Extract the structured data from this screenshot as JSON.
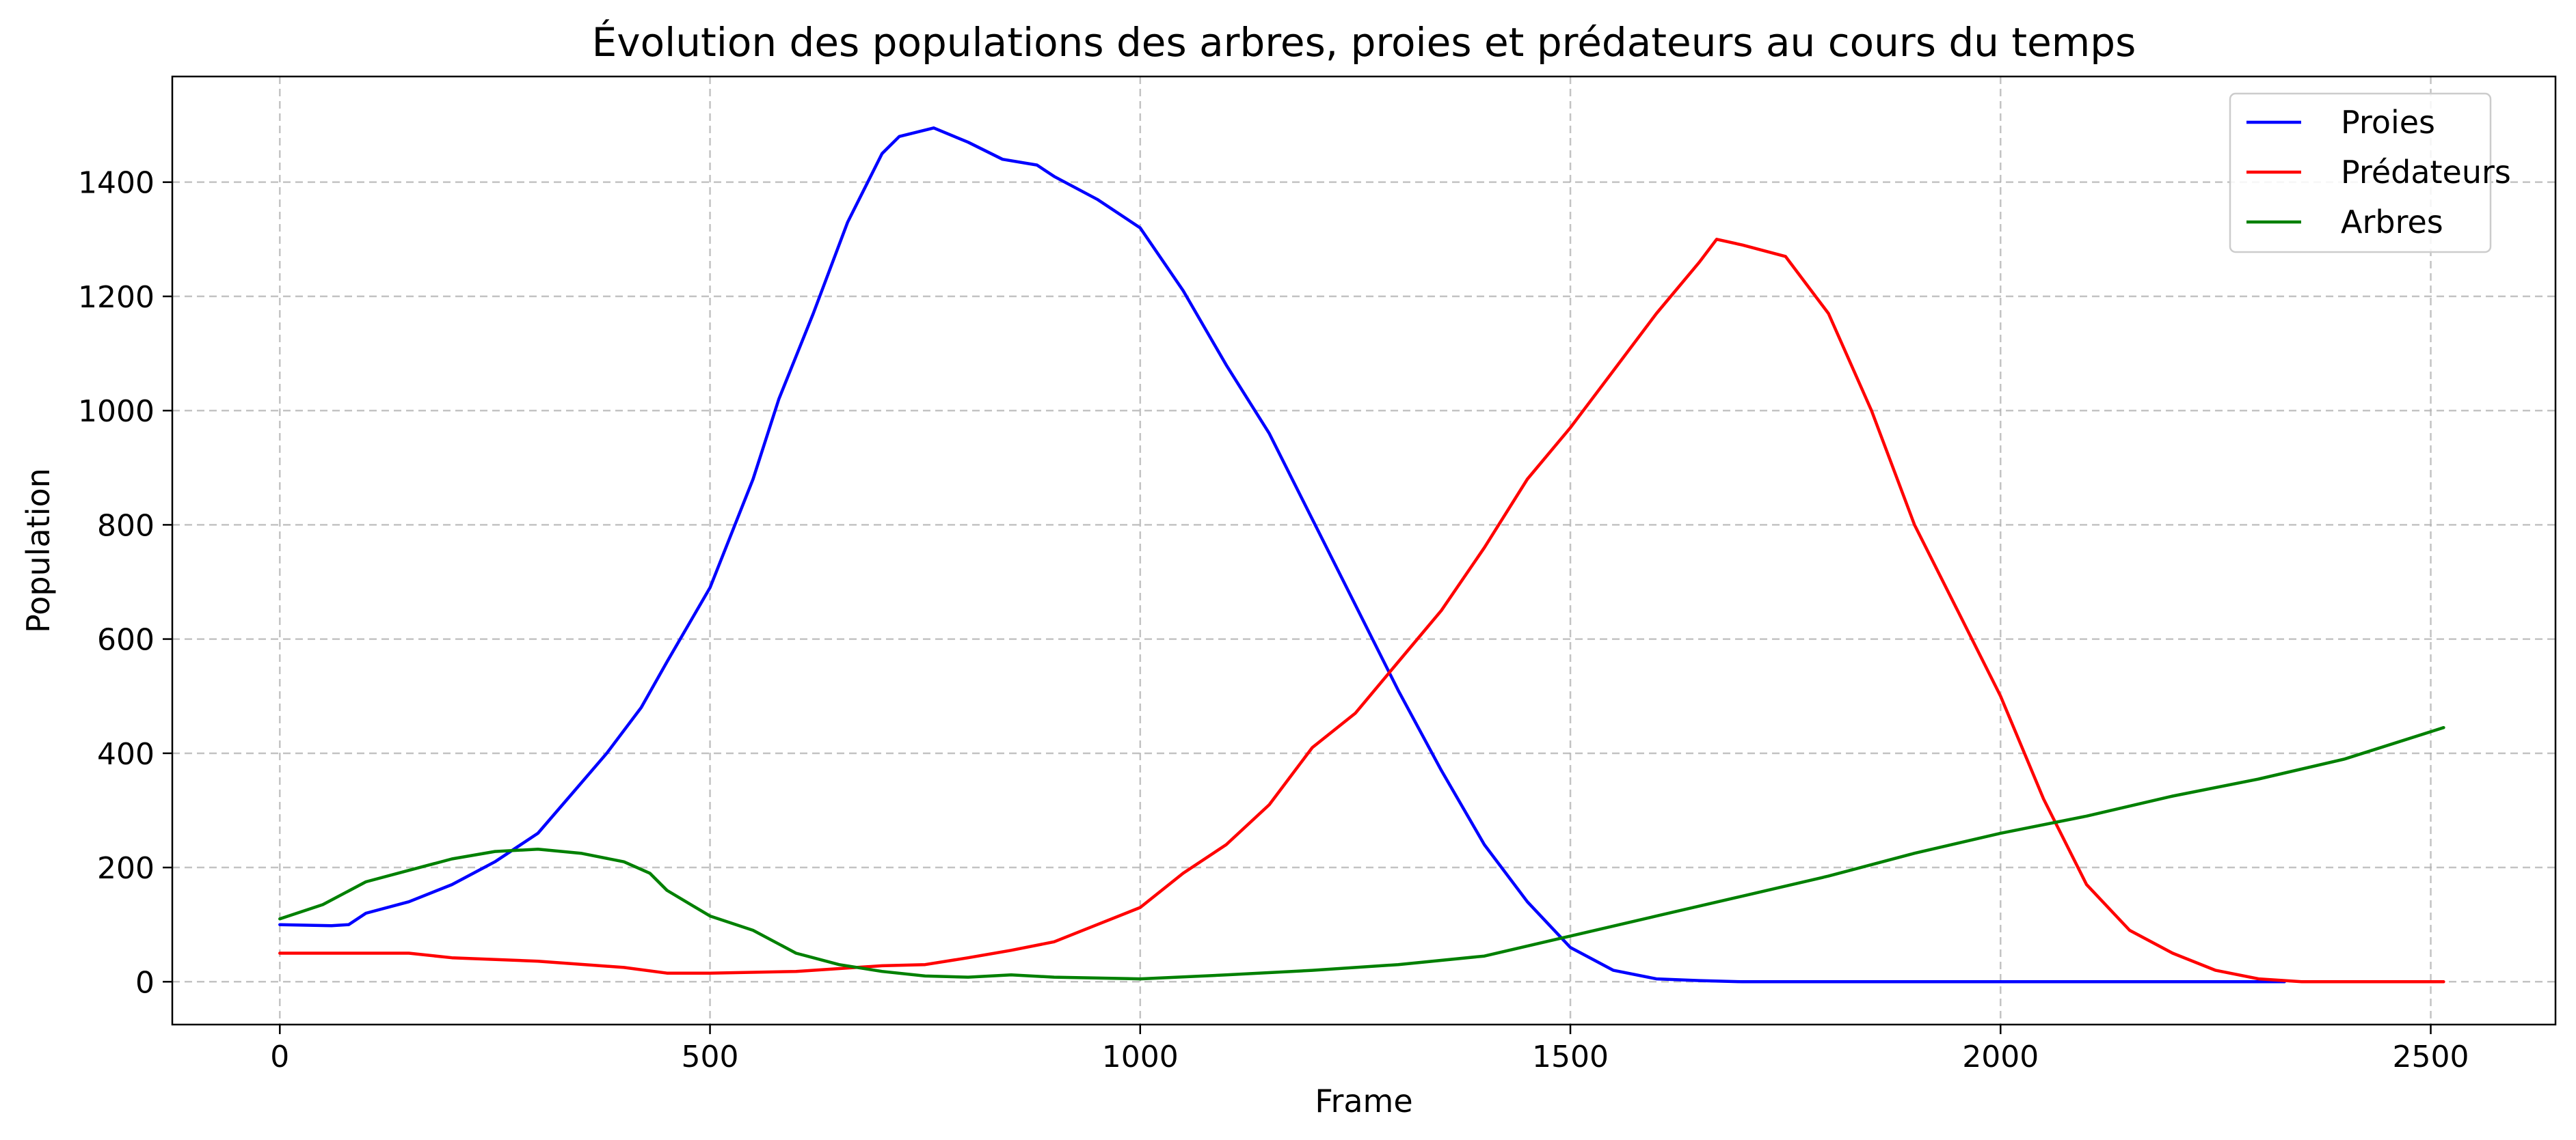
{
  "chart_data": {
    "type": "line",
    "title": "Évolution des populations des arbres, proies et prédateurs au cours du temps",
    "xlabel": "Frame",
    "ylabel": "Population",
    "xlim": [
      -125,
      2645
    ],
    "ylim": [
      -75,
      1585
    ],
    "xticks": [
      0,
      500,
      1000,
      1500,
      2000,
      2500
    ],
    "yticks": [
      0,
      200,
      400,
      600,
      800,
      1000,
      1200,
      1400
    ],
    "grid": true,
    "legend_position": "top-right",
    "series": [
      {
        "name": "Proies",
        "color": "#0000ff",
        "x": [
          0,
          60,
          80,
          100,
          150,
          200,
          250,
          300,
          340,
          380,
          420,
          450,
          500,
          550,
          580,
          620,
          660,
          700,
          720,
          760,
          800,
          840,
          880,
          900,
          950,
          1000,
          1050,
          1100,
          1150,
          1200,
          1250,
          1300,
          1350,
          1400,
          1450,
          1500,
          1550,
          1600,
          1650,
          1700,
          1800,
          2000,
          2200,
          2300,
          2330
        ],
        "y": [
          100,
          98,
          100,
          120,
          140,
          170,
          210,
          260,
          330,
          400,
          480,
          560,
          690,
          880,
          1020,
          1170,
          1330,
          1450,
          1480,
          1495,
          1470,
          1440,
          1430,
          1410,
          1370,
          1320,
          1210,
          1080,
          960,
          810,
          660,
          510,
          370,
          240,
          140,
          60,
          20,
          5,
          2,
          0,
          0,
          0,
          0,
          0,
          0
        ]
      },
      {
        "name": "Prédateurs",
        "color": "#ff0000",
        "x": [
          0,
          100,
          150,
          200,
          300,
          400,
          450,
          500,
          600,
          700,
          750,
          800,
          850,
          900,
          950,
          1000,
          1050,
          1100,
          1150,
          1200,
          1250,
          1300,
          1350,
          1400,
          1450,
          1500,
          1550,
          1600,
          1650,
          1670,
          1700,
          1750,
          1800,
          1850,
          1900,
          1950,
          2000,
          2050,
          2100,
          2150,
          2200,
          2250,
          2300,
          2350,
          2400,
          2515
        ],
        "y": [
          50,
          50,
          50,
          42,
          36,
          25,
          15,
          15,
          18,
          28,
          30,
          42,
          55,
          70,
          100,
          130,
          190,
          240,
          310,
          410,
          470,
          560,
          650,
          760,
          880,
          970,
          1070,
          1170,
          1260,
          1300,
          1290,
          1270,
          1170,
          1000,
          800,
          650,
          500,
          320,
          170,
          90,
          50,
          20,
          5,
          0,
          0,
          0
        ]
      },
      {
        "name": "Arbres",
        "color": "#008000",
        "x": [
          0,
          50,
          100,
          150,
          200,
          250,
          300,
          350,
          400,
          430,
          450,
          500,
          550,
          600,
          650,
          700,
          750,
          800,
          850,
          900,
          1000,
          1100,
          1200,
          1300,
          1400,
          1500,
          1600,
          1700,
          1800,
          1900,
          2000,
          2100,
          2200,
          2300,
          2400,
          2515
        ],
        "y": [
          110,
          135,
          175,
          195,
          215,
          228,
          232,
          225,
          210,
          190,
          160,
          115,
          90,
          50,
          30,
          18,
          10,
          8,
          12,
          8,
          5,
          12,
          20,
          30,
          45,
          80,
          115,
          150,
          185,
          225,
          260,
          290,
          325,
          355,
          390,
          445
        ]
      }
    ]
  }
}
